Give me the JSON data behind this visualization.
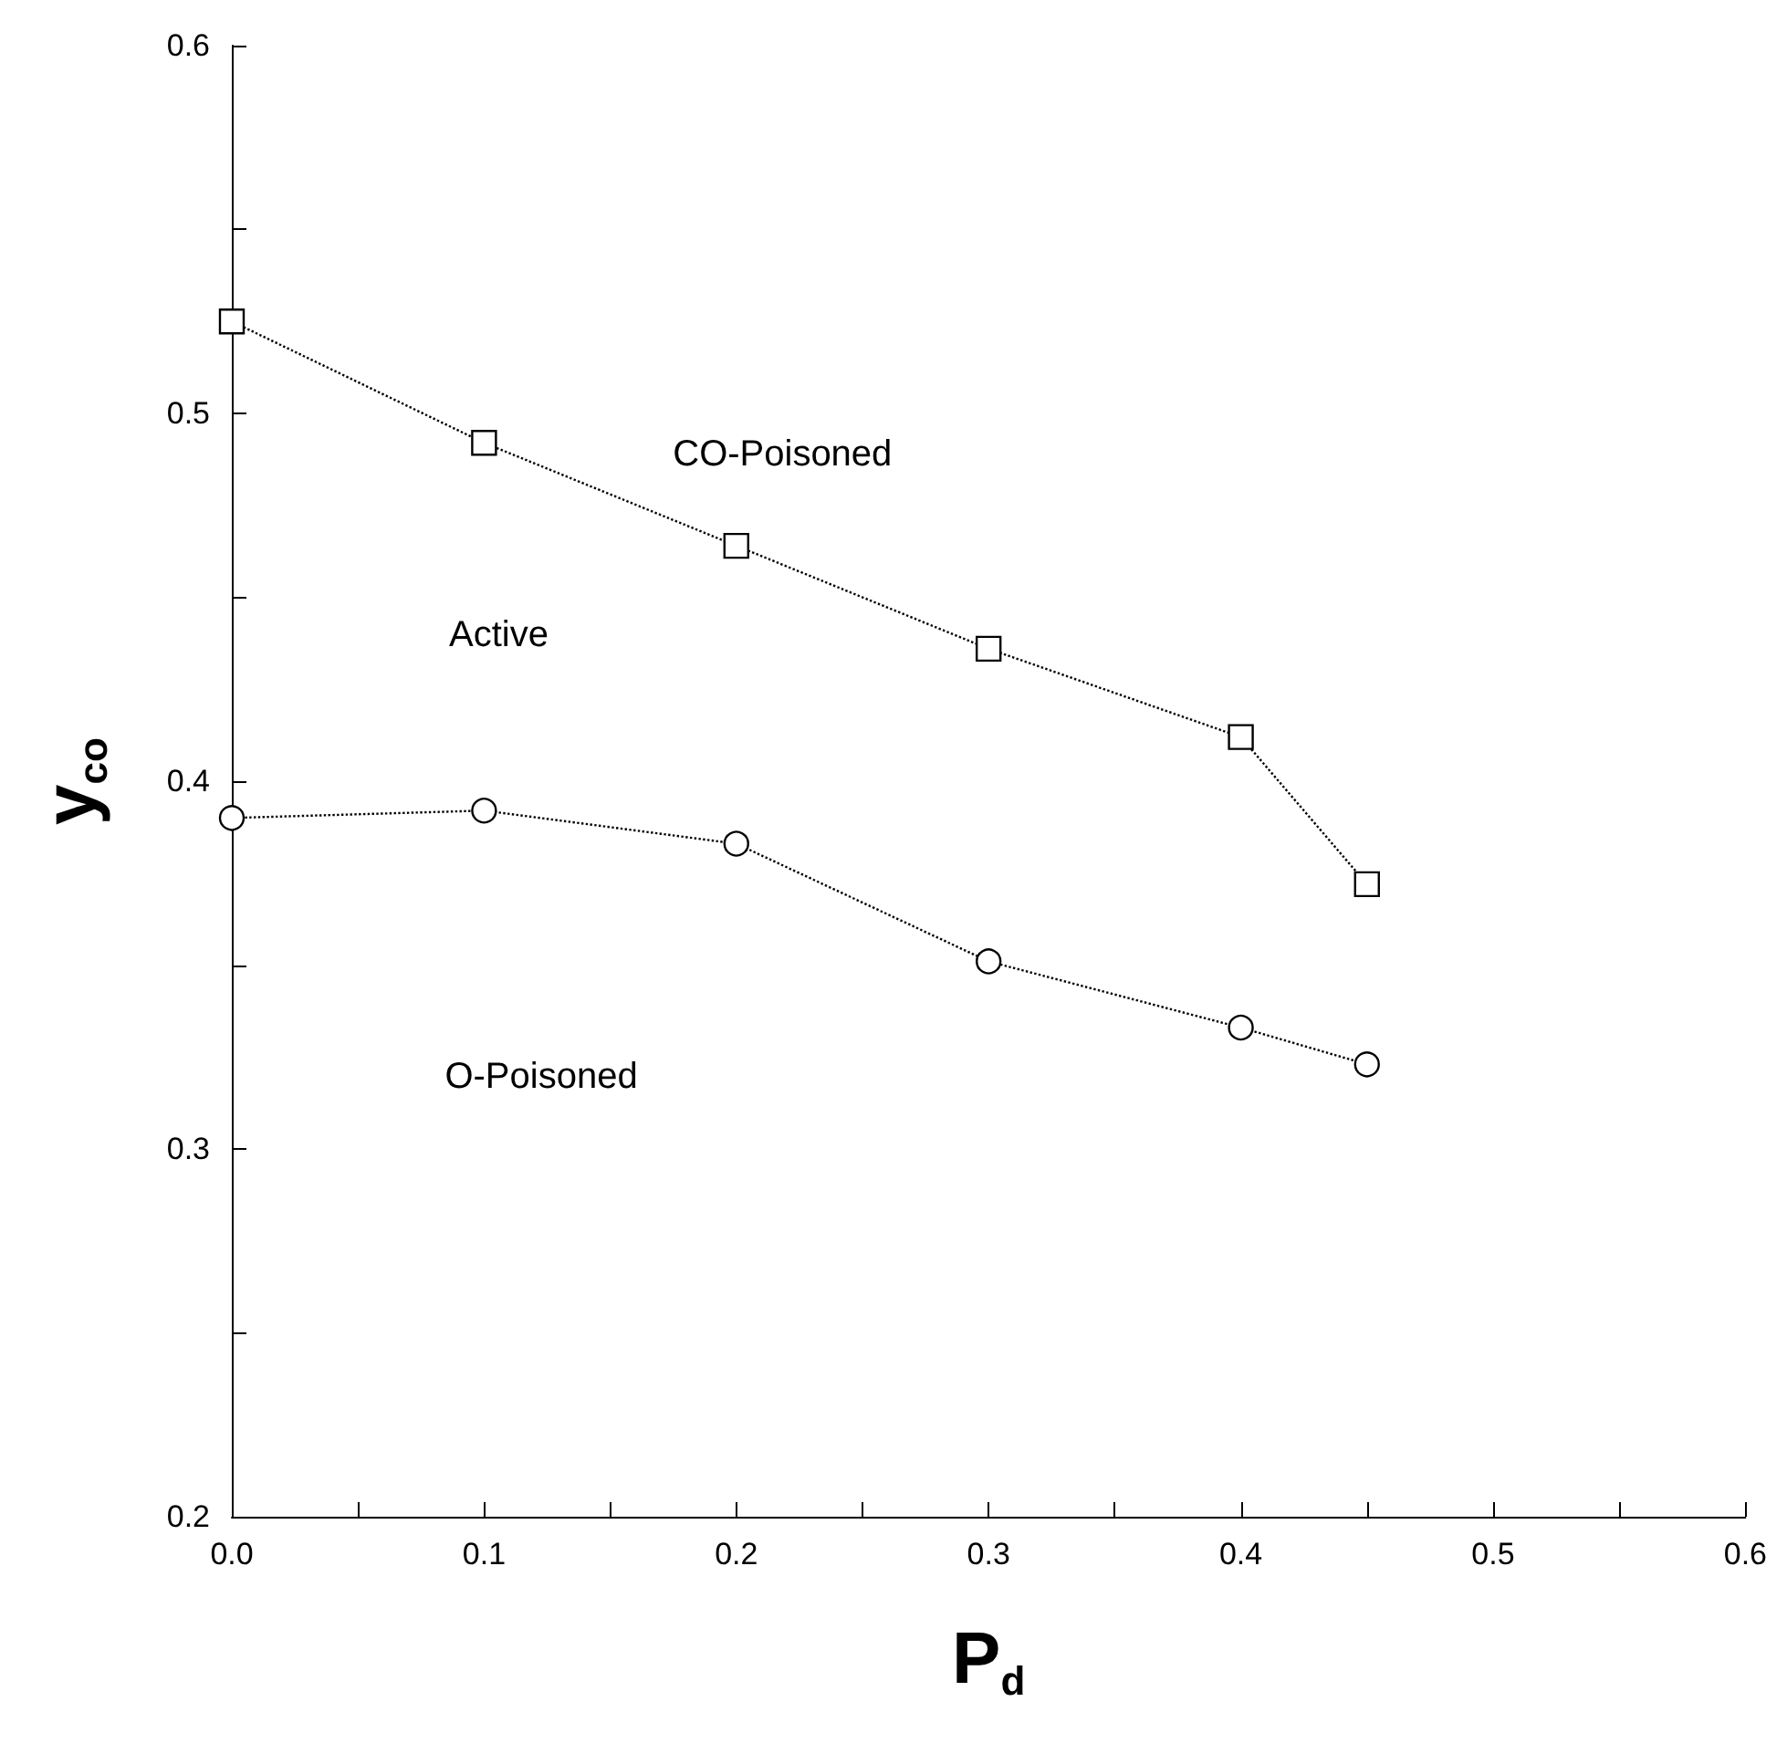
{
  "chart_data": {
    "type": "line",
    "xlabel": "P$_{d}$",
    "ylabel": "y$_{co}$",
    "series": [
      {
        "color": "#000000",
        "marker": "square",
        "x": [
          0,
          0.1,
          0.2,
          0.3,
          0.4,
          0.45
        ],
        "values": [
          0.525,
          0.492,
          0.464,
          0.436,
          0.412,
          0.372
        ]
      },
      {
        "color": "#000000",
        "marker": "circle",
        "x": [
          0,
          0.1,
          0.2,
          0.3,
          0.4,
          0.45
        ],
        "values": [
          0.39,
          0.392,
          0.383,
          0.351,
          0.333,
          0.323
        ]
      }
    ],
    "line_style": "dotted",
    "grid": false,
    "xlim": [
      0,
      0.6
    ],
    "xticks": [
      {
        "value": 0,
        "label": "0.0"
      },
      {
        "value": 0.05,
        "label": null
      },
      {
        "value": 0.1,
        "label": "0.1"
      },
      {
        "value": 0.15,
        "label": null
      },
      {
        "value": 0.2,
        "label": "0.2"
      },
      {
        "value": 0.25,
        "label": null
      },
      {
        "value": 0.3,
        "label": "0.3"
      },
      {
        "value": 0.35,
        "label": null
      },
      {
        "value": 0.4,
        "label": "0.4"
      },
      {
        "value": 0.45,
        "label": null
      },
      {
        "value": 0.5,
        "label": "0.5"
      },
      {
        "value": 0.55,
        "label": null
      },
      {
        "value": 0.6,
        "label": "0.6"
      }
    ],
    "ylim": [
      0.2,
      0.6
    ],
    "yticks": [
      {
        "value": 0.2,
        "label": "0.2"
      },
      {
        "value": 0.25,
        "label": null
      },
      {
        "value": 0.3,
        "label": "0.3"
      },
      {
        "value": 0.35,
        "label": null
      },
      {
        "value": 0.4,
        "label": "0.4"
      },
      {
        "value": 0.45,
        "label": null
      },
      {
        "value": 0.5,
        "label": "0.5"
      },
      {
        "value": 0.55,
        "label": null
      },
      {
        "value": 0.6,
        "label": "0.6"
      }
    ],
    "annotations": [
      "CO-Poisoned",
      "Active",
      "O-Poisoned"
    ]
  }
}
